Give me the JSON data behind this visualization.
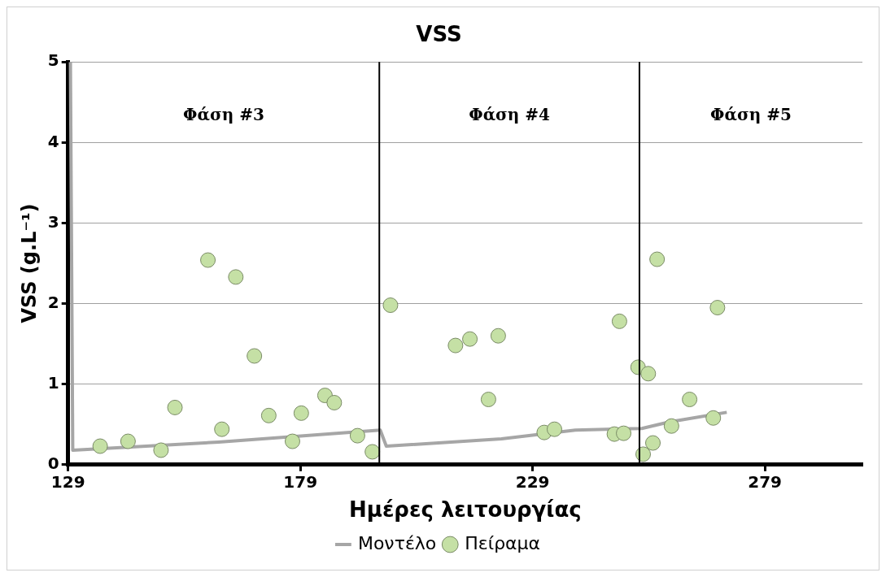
{
  "chart_data": {
    "type": "scatter",
    "title": "VSS",
    "xlabel": "Ημέρες λειτουργίας",
    "ylabel": "VSS (g.L⁻¹)",
    "xlim": [
      129,
      300
    ],
    "xticks": [
      129,
      179,
      229,
      279
    ],
    "ylim": [
      0,
      5
    ],
    "yticks": [
      0,
      1,
      2,
      3,
      4,
      5
    ],
    "grid": "y",
    "legend": "bottom",
    "marker": "circle",
    "series": [
      {
        "name": "Μοντέλο",
        "type": "line",
        "color": "#a6a6a6",
        "marker": "none",
        "x": [
          129.5,
          130,
          161.4,
          196.2,
          197.5,
          222.3,
          238.2,
          252.5,
          258.4,
          270.8
        ],
        "values": [
          5,
          0.18,
          0.28,
          0.43,
          0.23,
          0.32,
          0.43,
          0.45,
          0.53,
          0.65
        ]
      },
      {
        "name": "Πείραμα",
        "color": "#c5e0a5",
        "x": [
          135.9,
          141.9,
          149.0,
          152.0,
          159.1,
          162.1,
          165.1,
          169.1,
          172.2,
          177.3,
          179.2,
          184.3,
          186.3,
          191.3,
          194.5,
          198.4,
          212.4,
          215.5,
          219.5,
          221.6,
          231.5,
          233.7,
          246.6,
          247.7,
          248.6,
          251.7,
          252.8,
          253.9,
          254.9,
          255.8,
          258.9,
          262.8,
          267.9,
          268.8
        ],
        "values": [
          0.23,
          0.29,
          0.18,
          0.71,
          2.54,
          0.44,
          2.33,
          1.35,
          0.61,
          0.29,
          0.64,
          0.86,
          0.77,
          0.36,
          0.16,
          1.98,
          1.48,
          1.56,
          0.81,
          1.6,
          0.4,
          0.44,
          0.38,
          1.78,
          0.39,
          1.21,
          0.13,
          1.13,
          0.27,
          2.55,
          0.48,
          0.81,
          0.58,
          1.95
        ]
      }
    ],
    "ref_lines": [
      {
        "axis": "x",
        "value": 196,
        "color": "#000000"
      },
      {
        "axis": "x",
        "value": 252,
        "color": "#000000"
      }
    ],
    "annotations": [
      "Φάση #3",
      "Φάση #4",
      "Φάση #5"
    ]
  }
}
